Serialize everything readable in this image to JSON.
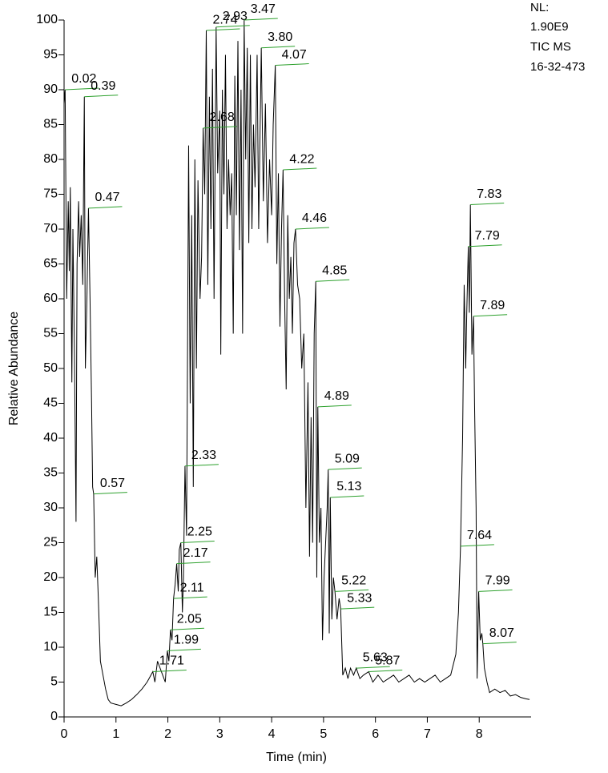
{
  "chart_data": {
    "type": "line",
    "y_label": "Relative Abundance",
    "x_label": "Time (min)",
    "info": [
      "NL:",
      "1.90E9",
      "TIC  MS",
      "16-32-473"
    ],
    "xlim": [
      0,
      9
    ],
    "xticks": [
      0,
      1,
      2,
      3,
      4,
      5,
      6,
      7,
      8
    ],
    "ylim": [
      0,
      100
    ],
    "yticks": [
      0,
      5,
      10,
      15,
      20,
      25,
      30,
      35,
      40,
      45,
      50,
      55,
      60,
      65,
      70,
      75,
      80,
      85,
      90,
      95,
      100
    ],
    "color": "#000000",
    "label_color": "#2ca02c",
    "x": [
      0.0,
      0.02,
      0.05,
      0.08,
      0.1,
      0.12,
      0.15,
      0.17,
      0.2,
      0.23,
      0.25,
      0.28,
      0.3,
      0.33,
      0.36,
      0.39,
      0.41,
      0.44,
      0.47,
      0.5,
      0.53,
      0.55,
      0.57,
      0.6,
      0.63,
      0.66,
      0.7,
      0.75,
      0.8,
      0.85,
      0.9,
      1.0,
      1.1,
      1.2,
      1.3,
      1.4,
      1.5,
      1.6,
      1.71,
      1.75,
      1.8,
      1.85,
      1.9,
      1.95,
      1.99,
      2.02,
      2.05,
      2.08,
      2.11,
      2.14,
      2.17,
      2.2,
      2.22,
      2.25,
      2.28,
      2.3,
      2.33,
      2.36,
      2.4,
      2.43,
      2.46,
      2.49,
      2.52,
      2.55,
      2.58,
      2.62,
      2.65,
      2.68,
      2.71,
      2.74,
      2.77,
      2.8,
      2.83,
      2.86,
      2.89,
      2.93,
      2.96,
      3.0,
      3.02,
      3.05,
      3.08,
      3.11,
      3.14,
      3.17,
      3.2,
      3.23,
      3.26,
      3.29,
      3.32,
      3.35,
      3.38,
      3.41,
      3.44,
      3.47,
      3.5,
      3.53,
      3.56,
      3.59,
      3.62,
      3.65,
      3.68,
      3.72,
      3.75,
      3.8,
      3.84,
      3.88,
      3.92,
      3.96,
      4.0,
      4.03,
      4.07,
      4.1,
      4.13,
      4.16,
      4.19,
      4.22,
      4.25,
      4.28,
      4.31,
      4.34,
      4.37,
      4.4,
      4.43,
      4.46,
      4.5,
      4.54,
      4.58,
      4.62,
      4.66,
      4.7,
      4.73,
      4.76,
      4.79,
      4.82,
      4.85,
      4.87,
      4.89,
      4.92,
      4.95,
      4.98,
      5.01,
      5.04,
      5.07,
      5.09,
      5.11,
      5.13,
      5.16,
      5.19,
      5.22,
      5.26,
      5.3,
      5.33,
      5.37,
      5.42,
      5.47,
      5.52,
      5.58,
      5.63,
      5.7,
      5.77,
      5.87,
      5.95,
      6.05,
      6.15,
      6.25,
      6.35,
      6.45,
      6.55,
      6.65,
      6.75,
      6.85,
      6.95,
      7.05,
      7.15,
      7.25,
      7.35,
      7.45,
      7.55,
      7.6,
      7.64,
      7.68,
      7.71,
      7.74,
      7.76,
      7.79,
      7.81,
      7.83,
      7.86,
      7.89,
      7.91,
      7.94,
      7.96,
      7.99,
      8.02,
      8.05,
      8.07,
      8.1,
      8.15,
      8.2,
      8.3,
      8.4,
      8.5,
      8.6,
      8.7,
      8.8,
      8.9,
      8.97
    ],
    "values": [
      88,
      90,
      60,
      74,
      64,
      76,
      48,
      70,
      52,
      28,
      65,
      74,
      66,
      72,
      62,
      89,
      50,
      60,
      73,
      60,
      45,
      33,
      32,
      20,
      23,
      17,
      8,
      6,
      4,
      2.5,
      2,
      1.8,
      1.6,
      2.0,
      2.5,
      3.2,
      4,
      5,
      6.5,
      5,
      8,
      7,
      6,
      5,
      9.5,
      8,
      12.5,
      11,
      17,
      19,
      22,
      18,
      24,
      25,
      15,
      20,
      36,
      26,
      82,
      45,
      72,
      33,
      80,
      50,
      77,
      60,
      66,
      84.5,
      75,
      98.5,
      62,
      89,
      70,
      93,
      60,
      99,
      78,
      87,
      52,
      90,
      75,
      95,
      70,
      80,
      72,
      78,
      55,
      92,
      72,
      97,
      67,
      90,
      55,
      100,
      80,
      96,
      68,
      95,
      70,
      85,
      76,
      95,
      70,
      96,
      74,
      88,
      68,
      80,
      72,
      85,
      93.5,
      65,
      78,
      56,
      70,
      78.5,
      60,
      47,
      72,
      60,
      66,
      55,
      68,
      70,
      62,
      60,
      50,
      55,
      30,
      48,
      23,
      43,
      25,
      55,
      62.5,
      20,
      44.5,
      25,
      30,
      11,
      20,
      25,
      30,
      35.5,
      12,
      31.5,
      14,
      20,
      18,
      14,
      17,
      15.5,
      6,
      7,
      5.5,
      7,
      6,
      7,
      5.5,
      6,
      6.5,
      5,
      6,
      5,
      5.5,
      6,
      5,
      5.5,
      6,
      5,
      5.5,
      5,
      5.5,
      6,
      5,
      5.5,
      6,
      9,
      15,
      24.5,
      40,
      62,
      50,
      58,
      67.5,
      58,
      73.5,
      52,
      57.5,
      45,
      30,
      5.5,
      18,
      11,
      12,
      10.5,
      7,
      5,
      3.5,
      4,
      3.5,
      3.8,
      3,
      3.2,
      2.8,
      2.6,
      2.5
    ],
    "peak_labels": [
      {
        "label": "0.02",
        "x": 0.02,
        "y": 90
      },
      {
        "label": "0.39",
        "x": 0.39,
        "y": 89
      },
      {
        "label": "0.47",
        "x": 0.47,
        "y": 73
      },
      {
        "label": "0.57",
        "x": 0.57,
        "y": 32
      },
      {
        "label": "1.71",
        "x": 1.71,
        "y": 6.5
      },
      {
        "label": "1.99",
        "x": 1.99,
        "y": 9.5
      },
      {
        "label": "2.05",
        "x": 2.05,
        "y": 12.5
      },
      {
        "label": "2.11",
        "x": 2.11,
        "y": 17
      },
      {
        "label": "2.17",
        "x": 2.17,
        "y": 22
      },
      {
        "label": "2.25",
        "x": 2.25,
        "y": 25
      },
      {
        "label": "2.33",
        "x": 2.33,
        "y": 36
      },
      {
        "label": "2.68",
        "x": 2.68,
        "y": 84.5
      },
      {
        "label": "2.74",
        "x": 2.74,
        "y": 98.5
      },
      {
        "label": "2.93",
        "x": 2.93,
        "y": 99
      },
      {
        "label": "3.47",
        "x": 3.47,
        "y": 100
      },
      {
        "label": "3.80",
        "x": 3.8,
        "y": 96
      },
      {
        "label": "4.07",
        "x": 4.07,
        "y": 93.5
      },
      {
        "label": "4.22",
        "x": 4.22,
        "y": 78.5
      },
      {
        "label": "4.46",
        "x": 4.46,
        "y": 70
      },
      {
        "label": "4.85",
        "x": 4.85,
        "y": 62.5
      },
      {
        "label": "4.89",
        "x": 4.89,
        "y": 44.5
      },
      {
        "label": "5.09",
        "x": 5.09,
        "y": 35.5
      },
      {
        "label": "5.13",
        "x": 5.13,
        "y": 31.5
      },
      {
        "label": "5.22",
        "x": 5.22,
        "y": 18
      },
      {
        "label": "5.33",
        "x": 5.33,
        "y": 15.5
      },
      {
        "label": "5.63",
        "x": 5.63,
        "y": 7
      },
      {
        "label": "5.87",
        "x": 5.87,
        "y": 6.5
      },
      {
        "label": "7.64",
        "x": 7.64,
        "y": 24.5
      },
      {
        "label": "7.79",
        "x": 7.79,
        "y": 67.5
      },
      {
        "label": "7.83",
        "x": 7.83,
        "y": 73.5
      },
      {
        "label": "7.89",
        "x": 7.89,
        "y": 57.5
      },
      {
        "label": "7.99",
        "x": 7.99,
        "y": 18
      },
      {
        "label": "8.07",
        "x": 8.07,
        "y": 10.5
      }
    ]
  }
}
